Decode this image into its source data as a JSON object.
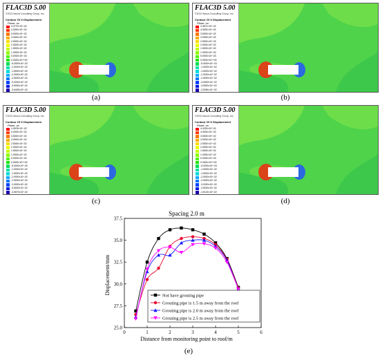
{
  "panels": [
    {
      "title": "FLAC3D 5.00",
      "copyright": "©2012 Itasca Consulting Group, Inc.",
      "contour_title": "Contour Of X Displacement",
      "plane": "Plane: on",
      "levels": [
        "4.4770×10^-02",
        "4.0000×10^-02",
        "3.5000×10^-02",
        "3.0000×10^-02",
        "2.5000×10^-02",
        "2.0000×10^-02",
        "1.5000×10^-02",
        "1.0000×10^-02",
        "5.0000×10^-03",
        "0.0000×10^+00",
        "-5.0000×10^-03",
        "-1.0000×10^-02",
        "-1.5000×10^-02",
        "-2.0000×10^-02",
        "-2.5000×10^-02",
        "-3.0000×10^-02",
        "-3.5000×10^-02",
        "-3.6426×10^-02"
      ],
      "caption": "(a)"
    },
    {
      "title": "FLAC3D 5.00",
      "copyright": "©2012 Itasca Consulting Group, Inc.",
      "contour_title": "Contour Of X Displacement",
      "plane": "Plane: on",
      "levels": [
        "4.4571×10^-02",
        "4.0000×10^-02",
        "3.5000×10^-02",
        "3.0000×10^-02",
        "2.5000×10^-02",
        "2.0000×10^-02",
        "1.5000×10^-02",
        "1.0000×10^-02",
        "5.0000×10^-03",
        "0.0000×10^+00",
        "-5.0000×10^-03",
        "-1.0000×10^-02",
        "-1.5000×10^-02",
        "-2.0000×10^-02",
        "-2.5000×10^-02",
        "-3.0000×10^-02",
        "-3.5000×10^-02",
        "-3.6364×10^-02"
      ],
      "caption": "(b)"
    },
    {
      "title": "FLAC3D 5.00",
      "copyright": "©2012 Itasca Consulting Group, Inc.",
      "contour_title": "Contour Of X Displacement",
      "plane": "Plane: on",
      "levels": [
        "4.4578×10^-02",
        "4.0000×10^-02",
        "3.5000×10^-02",
        "3.0000×10^-02",
        "2.5000×10^-02",
        "2.0000×10^-02",
        "1.5000×10^-02",
        "1.0000×10^-02",
        "5.0000×10^-03",
        "0.0000×10^+00",
        "-5.0000×10^-03",
        "-1.0000×10^-02",
        "-1.5000×10^-02",
        "-2.0000×10^-02",
        "-2.5000×10^-02",
        "-3.0000×10^-02",
        "-3.5000×10^-02",
        "-3.5573×10^-02"
      ],
      "caption": "(c)"
    },
    {
      "title": "FLAC3D 5.00",
      "copyright": "©2012 Itasca Consulting Group, Inc.",
      "contour_title": "Contour Of X Displacement",
      "plane": "Plane: on",
      "levels": [
        "4.4230×10^-02",
        "4.0000×10^-02",
        "3.5000×10^-02",
        "3.0000×10^-02",
        "2.5000×10^-02",
        "2.0000×10^-02",
        "1.5000×10^-02",
        "1.0000×10^-02",
        "5.0000×10^-03",
        "0.0000×10^+00",
        "-5.0000×10^-03",
        "-1.0000×10^-02",
        "-1.5000×10^-02",
        "-2.0000×10^-02",
        "-2.5000×10^-02",
        "-3.0000×10^-02",
        "-3.5000×10^-02",
        "-3.5124×10^-02"
      ],
      "caption": "(d)"
    }
  ],
  "legend_colors": [
    "#ff0000",
    "#ff3a00",
    "#ff7700",
    "#ffae00",
    "#ffd900",
    "#f0ff00",
    "#c2ff00",
    "#8cff00",
    "#52f500",
    "#1fe600",
    "#00dd55",
    "#00e0a8",
    "#00dcdc",
    "#00aaff",
    "#0077ff",
    "#0044ff",
    "#0018dd",
    "#1a00b0"
  ],
  "field_colors": {
    "background": "#4fd34a",
    "light": "#7ae24a",
    "dark": "#33c24c",
    "tunnel_left": "#e23a16",
    "tunnel_right": "#2a62e8",
    "tunnel": "#ffffff"
  },
  "chart_caption": "(e)",
  "chart_data": {
    "type": "line",
    "title": "Spacing 2.0 m",
    "xlabel": "Distance from monitoring point to roof/m",
    "ylabel": "Displacement/mm",
    "xlim": [
      0,
      6
    ],
    "ylim": [
      25.0,
      37.5
    ],
    "xticks": [
      0,
      1,
      2,
      3,
      4,
      5,
      6
    ],
    "yticks": [
      25.0,
      27.5,
      30.0,
      32.5,
      35.0,
      37.5
    ],
    "x": [
      0.5,
      1.0,
      1.5,
      2.0,
      2.5,
      3.0,
      3.5,
      4.0,
      4.5,
      5.0
    ],
    "series": [
      {
        "name": "Not have grouting pipe",
        "color": "#000000",
        "marker": "square",
        "values": [
          26.9,
          32.5,
          35.2,
          36.2,
          36.4,
          36.2,
          35.7,
          34.7,
          32.9,
          29.6
        ]
      },
      {
        "name": "Grouting pipe is 1.5 m away from the roof",
        "color": "#e8002a",
        "marker": "circle",
        "values": [
          26.5,
          30.5,
          31.8,
          34.3,
          35.2,
          35.4,
          35.2,
          34.5,
          32.8,
          29.5
        ]
      },
      {
        "name": "Grouting pipe is 2.0 m away from the roof",
        "color": "#1a1aff",
        "marker": "triangle-up",
        "values": [
          26.2,
          31.4,
          33.3,
          33.3,
          34.7,
          35.0,
          35.0,
          34.3,
          32.7,
          29.4
        ]
      },
      {
        "name": "Grouting pipe is 2.5 m away from the roof",
        "color": "#ff00ff",
        "marker": "triangle-down",
        "values": [
          26.0,
          31.7,
          33.8,
          34.2,
          33.6,
          34.5,
          34.6,
          34.1,
          32.5,
          29.4
        ]
      }
    ],
    "grid": false,
    "legend_position": "bottom-left"
  }
}
